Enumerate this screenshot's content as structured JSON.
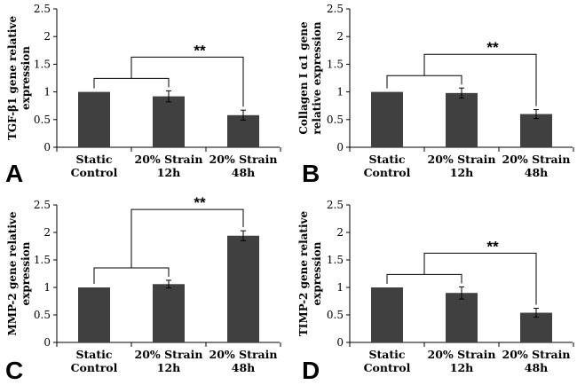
{
  "chart_data": [
    {
      "type": "bar",
      "panel": "A",
      "ylabel": [
        "TGF-β1 gene relative",
        "expression"
      ],
      "categories": [
        [
          "Static",
          "Control"
        ],
        [
          "20% Strain",
          "12h"
        ],
        [
          "20% Strain",
          "48h"
        ]
      ],
      "values": [
        1.0,
        0.92,
        0.58
      ],
      "errors": [
        0.0,
        0.1,
        0.09
      ],
      "ylim": [
        0,
        2.5
      ],
      "yticks": [
        "0",
        "0.5",
        "1",
        "1.5",
        "2",
        "2.5"
      ],
      "significance": "**",
      "bar_color": "#404040",
      "grid": false
    },
    {
      "type": "bar",
      "panel": "B",
      "ylabel": [
        "Collagen I α1 gene",
        "relative expression"
      ],
      "categories": [
        [
          "Static",
          "Control"
        ],
        [
          "20% Strain",
          "12h"
        ],
        [
          "20% Strain",
          "48h"
        ]
      ],
      "values": [
        1.0,
        0.98,
        0.6
      ],
      "errors": [
        0.0,
        0.09,
        0.08
      ],
      "ylim": [
        0,
        2.5
      ],
      "yticks": [
        "0",
        "0.5",
        "1",
        "1.5",
        "2",
        "2.5"
      ],
      "significance": "**",
      "bar_color": "#404040",
      "grid": false
    },
    {
      "type": "bar",
      "panel": "C",
      "ylabel": [
        "MMP-2 gene relative",
        "expression"
      ],
      "categories": [
        [
          "Static",
          "Control"
        ],
        [
          "20% Strain",
          "12h"
        ],
        [
          "20% Strain",
          "48h"
        ]
      ],
      "values": [
        1.0,
        1.06,
        1.94
      ],
      "errors": [
        0.0,
        0.07,
        0.09
      ],
      "ylim": [
        0,
        2.5
      ],
      "yticks": [
        "0",
        "0.5",
        "1",
        "1.5",
        "2",
        "2.5"
      ],
      "significance": "**",
      "bar_color": "#404040",
      "grid": false
    },
    {
      "type": "bar",
      "panel": "D",
      "ylabel": [
        "TIMP-2 gene relative",
        "expression"
      ],
      "categories": [
        [
          "Static",
          "Control"
        ],
        [
          "20% Strain",
          "12h"
        ],
        [
          "20% Strain",
          "48h"
        ]
      ],
      "values": [
        1.0,
        0.9,
        0.54
      ],
      "errors": [
        0.0,
        0.11,
        0.08
      ],
      "ylim": [
        0,
        2.5
      ],
      "yticks": [
        "0",
        "0.5",
        "1",
        "1.5",
        "2",
        "2.5"
      ],
      "significance": "**",
      "bar_color": "#404040",
      "grid": false
    }
  ]
}
